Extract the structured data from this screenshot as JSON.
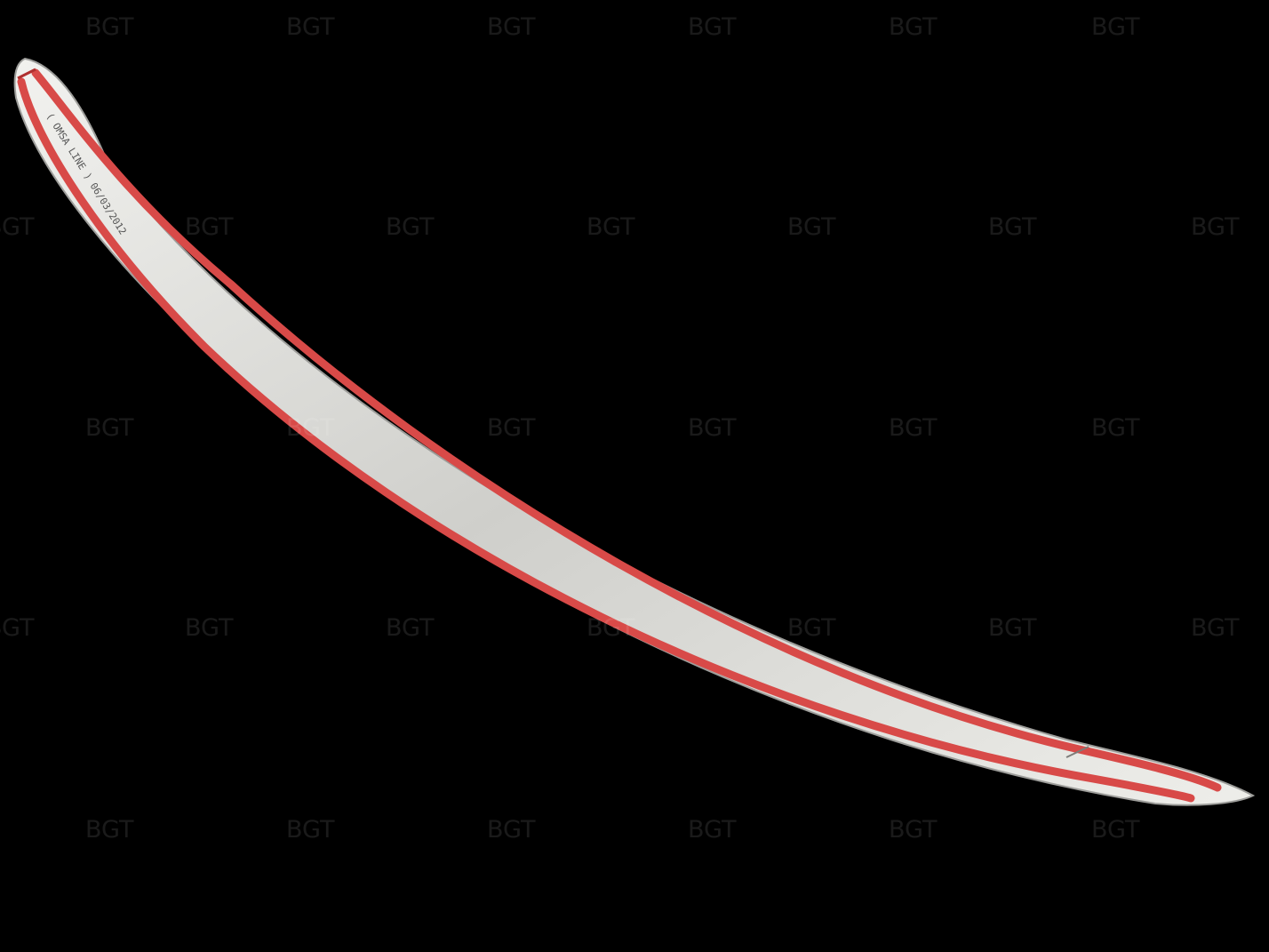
{
  "image": {
    "background_color": "#000000",
    "watermark_text": "BGT",
    "subject": "chrome-trunk-trim-strip",
    "strip_colors": {
      "chrome": "#d9d9d6",
      "chrome_edge": "#a7a7a4",
      "tape_red": "#d84a48",
      "tape_backing": "#dcdad6"
    },
    "strip_label": "( OMSA LINE ) 06/03/2012"
  },
  "watermarks": [
    {
      "text": "BGT"
    },
    {
      "text": "BGT"
    },
    {
      "text": "BGT"
    },
    {
      "text": "BGT"
    },
    {
      "text": "BGT"
    },
    {
      "text": "BGT"
    },
    {
      "text": "BGT"
    },
    {
      "text": "BGT"
    },
    {
      "text": "BGT"
    },
    {
      "text": "BGT"
    },
    {
      "text": "BGT"
    },
    {
      "text": "BGT"
    },
    {
      "text": "BGT"
    },
    {
      "text": "BGT"
    },
    {
      "text": "BGT"
    },
    {
      "text": "BGT"
    },
    {
      "text": "BGT"
    },
    {
      "text": "BGT"
    },
    {
      "text": "BGT"
    },
    {
      "text": "BGT"
    },
    {
      "text": "BGT"
    },
    {
      "text": "BGT"
    },
    {
      "text": "BGT"
    },
    {
      "text": "BGT"
    },
    {
      "text": "BGT"
    },
    {
      "text": "BGT"
    },
    {
      "text": "BGT"
    },
    {
      "text": "BGT"
    },
    {
      "text": "BGT"
    },
    {
      "text": "BGT"
    },
    {
      "text": "BGT"
    },
    {
      "text": "BGT"
    }
  ]
}
